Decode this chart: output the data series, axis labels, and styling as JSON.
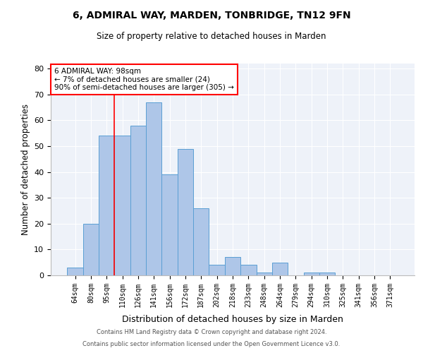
{
  "title1": "6, ADMIRAL WAY, MARDEN, TONBRIDGE, TN12 9FN",
  "title2": "Size of property relative to detached houses in Marden",
  "xlabel": "Distribution of detached houses by size in Marden",
  "ylabel": "Number of detached properties",
  "categories": [
    "64sqm",
    "80sqm",
    "95sqm",
    "110sqm",
    "126sqm",
    "141sqm",
    "156sqm",
    "172sqm",
    "187sqm",
    "202sqm",
    "218sqm",
    "233sqm",
    "248sqm",
    "264sqm",
    "279sqm",
    "294sqm",
    "310sqm",
    "325sqm",
    "341sqm",
    "356sqm",
    "371sqm"
  ],
  "values": [
    3,
    20,
    54,
    54,
    58,
    67,
    39,
    49,
    26,
    4,
    7,
    4,
    1,
    5,
    0,
    1,
    1,
    0,
    0,
    0,
    0
  ],
  "bar_color": "#aec6e8",
  "bar_edge_color": "#5a9fd4",
  "red_line_x": 2.5,
  "annotation_title": "6 ADMIRAL WAY: 98sqm",
  "annotation_line1": "← 7% of detached houses are smaller (24)",
  "annotation_line2": "90% of semi-detached houses are larger (305) →",
  "ylim": [
    0,
    82
  ],
  "yticks": [
    0,
    10,
    20,
    30,
    40,
    50,
    60,
    70,
    80
  ],
  "footnote1": "Contains HM Land Registry data © Crown copyright and database right 2024.",
  "footnote2": "Contains public sector information licensed under the Open Government Licence v3.0.",
  "bg_color": "#eef2f9"
}
